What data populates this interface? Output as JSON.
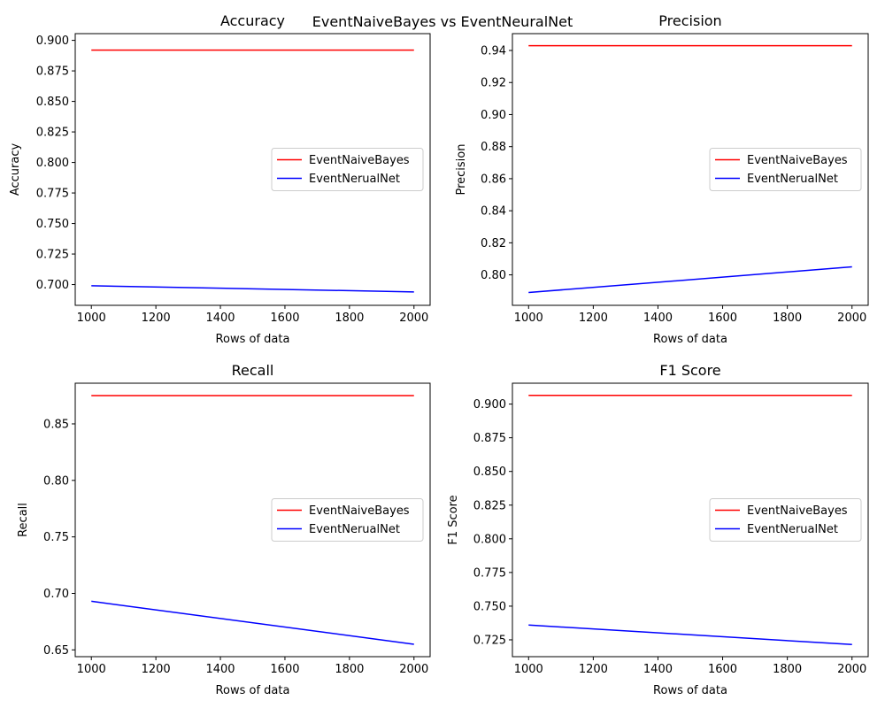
{
  "figure": {
    "suptitle": "EventNaiveBayes vs EventNeuralNet"
  },
  "colors": {
    "series_1": "#ff0000",
    "series_2": "#0000ff",
    "axes": "#000000",
    "legend_border": "#cccccc"
  },
  "chart_data": [
    {
      "type": "line",
      "title": "Accuracy",
      "xlabel": "Rows of data",
      "ylabel": "Accuracy",
      "xlim": [
        950,
        2050
      ],
      "ylim": [
        0.683,
        0.9055
      ],
      "xticks": [
        1000,
        1200,
        1400,
        1600,
        1800,
        2000
      ],
      "yticks": [
        0.7,
        0.725,
        0.75,
        0.775,
        0.8,
        0.825,
        0.85,
        0.875,
        0.9
      ],
      "ytick_labels": [
        "0.700",
        "0.725",
        "0.750",
        "0.775",
        "0.800",
        "0.825",
        "0.850",
        "0.875",
        "0.900"
      ],
      "grid": false,
      "legend": "center right",
      "series": [
        {
          "name": "EventNaiveBayes",
          "x": [
            1000,
            2000
          ],
          "y": [
            0.892,
            0.892
          ]
        },
        {
          "name": "EventNerualNet",
          "x": [
            1000,
            2000
          ],
          "y": [
            0.699,
            0.694
          ]
        }
      ]
    },
    {
      "type": "line",
      "title": "Precision",
      "xlabel": "Rows of data",
      "ylabel": "Precision",
      "xlim": [
        950,
        2050
      ],
      "ylim": [
        0.781,
        0.9505
      ],
      "xticks": [
        1000,
        1200,
        1400,
        1600,
        1800,
        2000
      ],
      "yticks": [
        0.8,
        0.82,
        0.84,
        0.86,
        0.88,
        0.9,
        0.92,
        0.94
      ],
      "ytick_labels": [
        "0.80",
        "0.82",
        "0.84",
        "0.86",
        "0.88",
        "0.90",
        "0.92",
        "0.94"
      ],
      "grid": false,
      "legend": "center right",
      "series": [
        {
          "name": "EventNaiveBayes",
          "x": [
            1000,
            2000
          ],
          "y": [
            0.943,
            0.943
          ]
        },
        {
          "name": "EventNerualNet",
          "x": [
            1000,
            2000
          ],
          "y": [
            0.789,
            0.805
          ]
        }
      ]
    },
    {
      "type": "line",
      "title": "Recall",
      "xlabel": "Rows of data",
      "ylabel": "Recall",
      "xlim": [
        950,
        2050
      ],
      "ylim": [
        0.644,
        0.886
      ],
      "xticks": [
        1000,
        1200,
        1400,
        1600,
        1800,
        2000
      ],
      "yticks": [
        0.65,
        0.7,
        0.75,
        0.8,
        0.85
      ],
      "ytick_labels": [
        "0.65",
        "0.70",
        "0.75",
        "0.80",
        "0.85"
      ],
      "grid": false,
      "legend": "center right",
      "series": [
        {
          "name": "EventNaiveBayes",
          "x": [
            1000,
            2000
          ],
          "y": [
            0.875,
            0.875
          ]
        },
        {
          "name": "EventNerualNet",
          "x": [
            1000,
            2000
          ],
          "y": [
            0.693,
            0.655
          ]
        }
      ]
    },
    {
      "type": "line",
      "title": "F1 Score",
      "xlabel": "Rows of data",
      "ylabel": "F1 Score",
      "xlim": [
        950,
        2050
      ],
      "ylim": [
        0.7125,
        0.9155
      ],
      "xticks": [
        1000,
        1200,
        1400,
        1600,
        1800,
        2000
      ],
      "yticks": [
        0.725,
        0.75,
        0.775,
        0.8,
        0.825,
        0.85,
        0.875,
        0.9
      ],
      "ytick_labels": [
        "0.725",
        "0.750",
        "0.775",
        "0.800",
        "0.825",
        "0.850",
        "0.875",
        "0.900"
      ],
      "grid": false,
      "legend": "center right",
      "series": [
        {
          "name": "EventNaiveBayes",
          "x": [
            1000,
            2000
          ],
          "y": [
            0.9065,
            0.9065
          ]
        },
        {
          "name": "EventNerualNet",
          "x": [
            1000,
            2000
          ],
          "y": [
            0.736,
            0.7215
          ]
        }
      ]
    }
  ]
}
